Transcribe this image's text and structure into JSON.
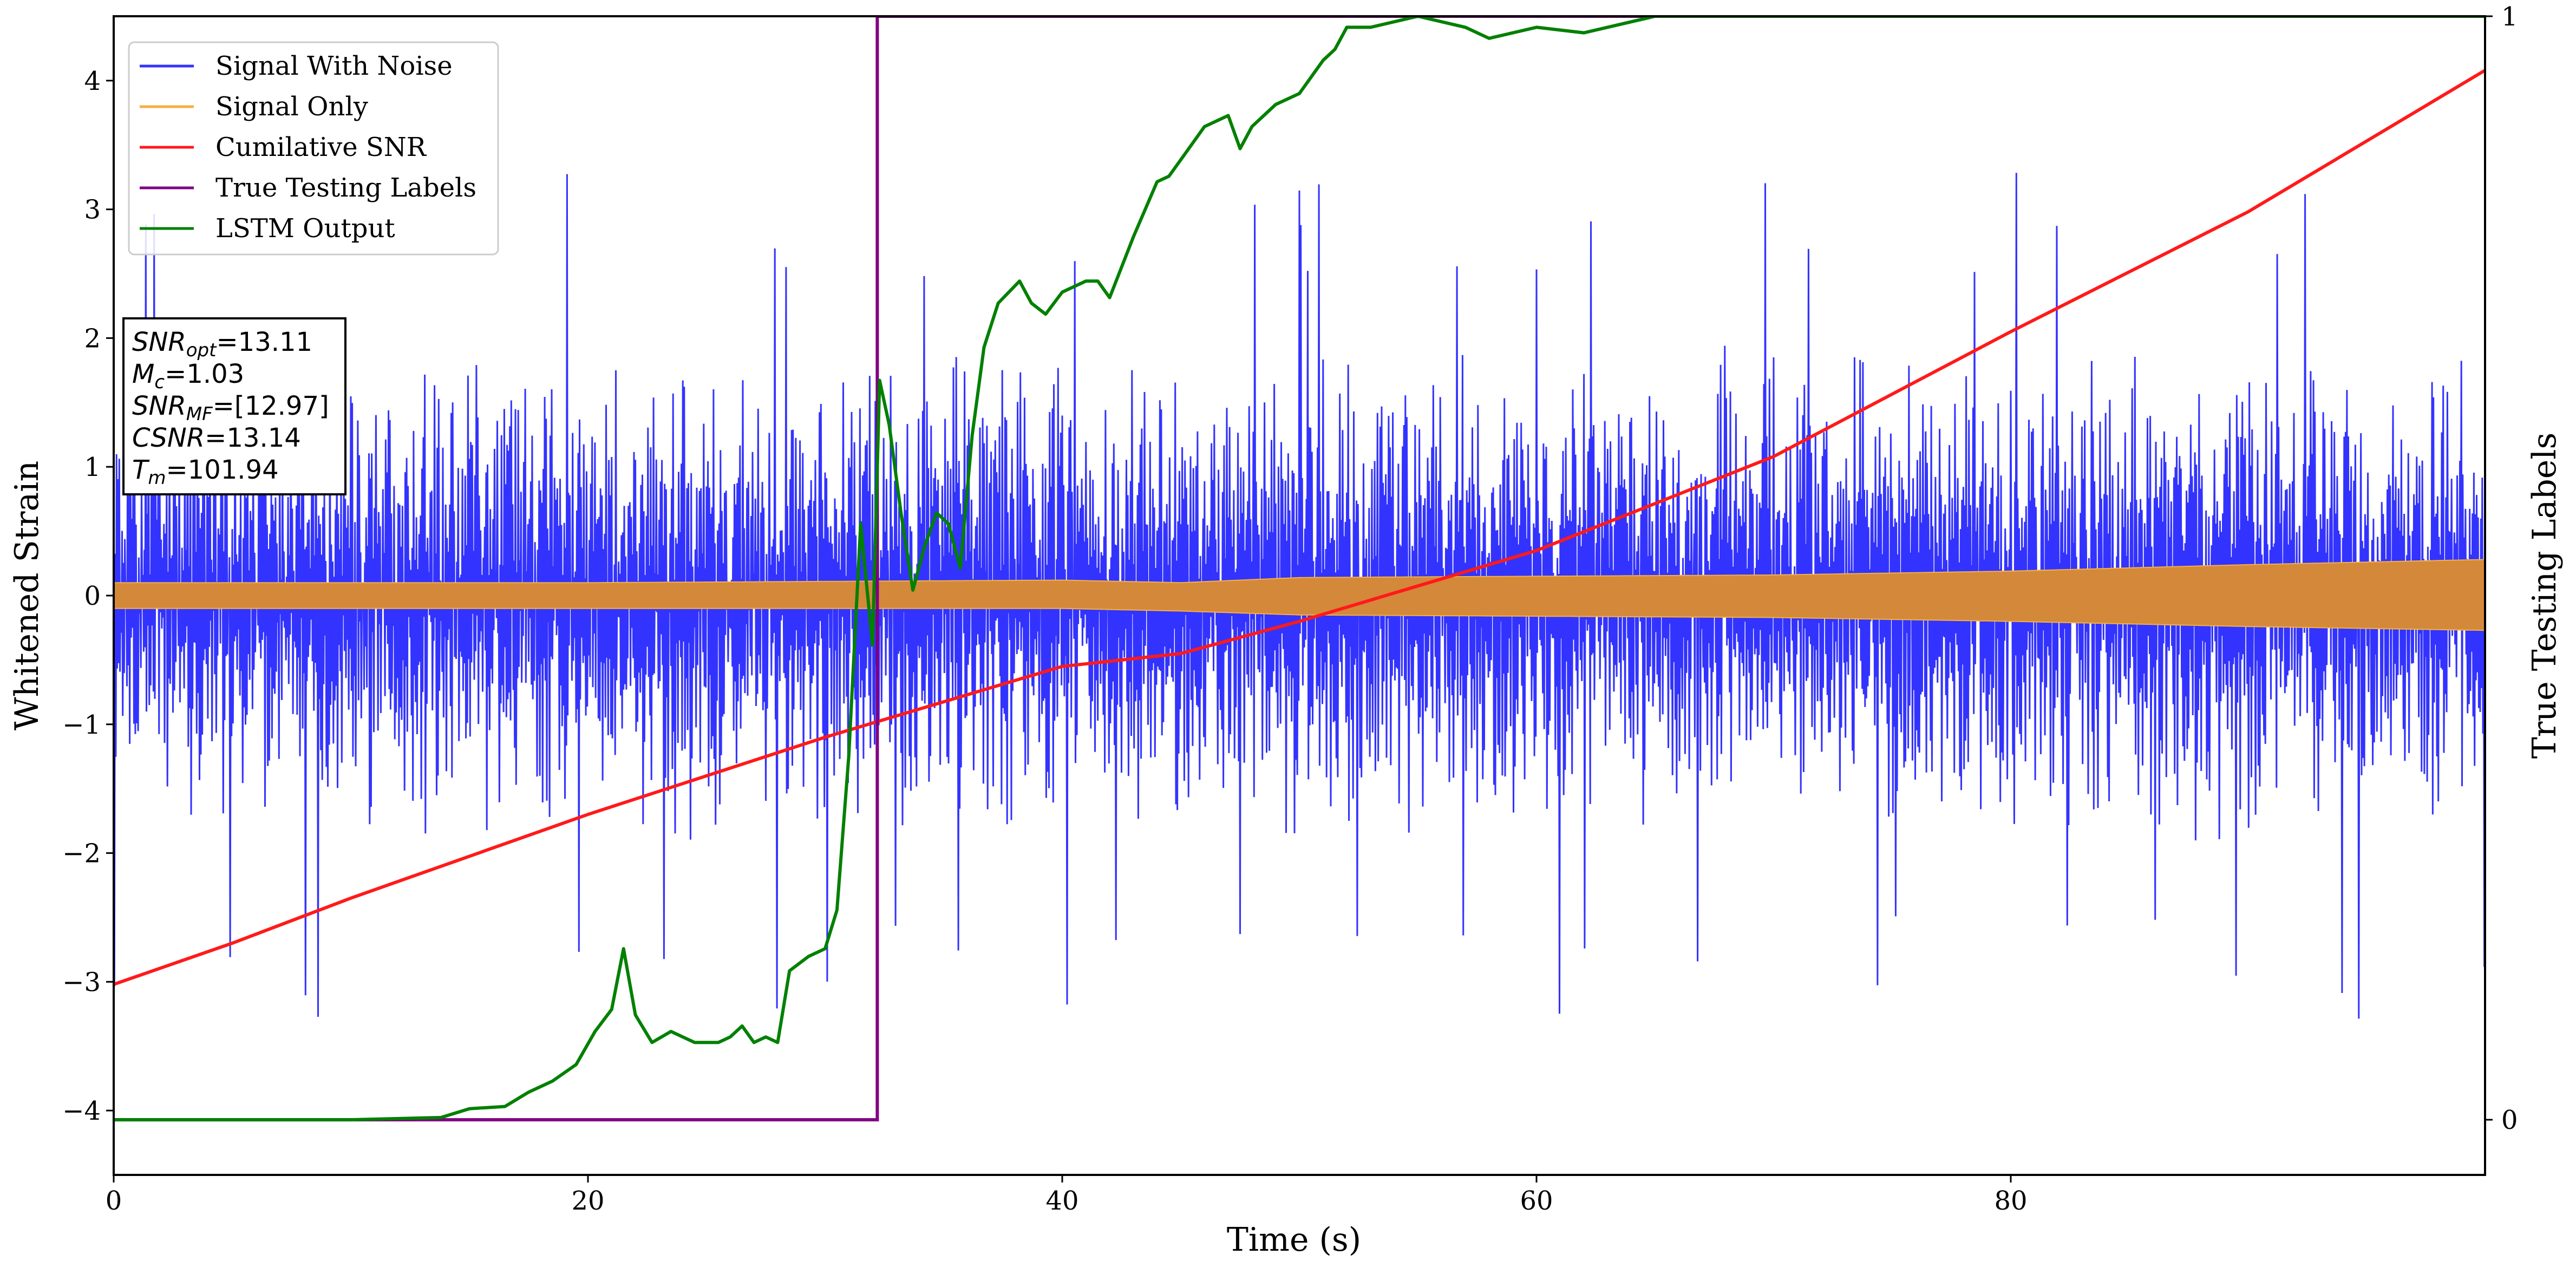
{
  "chart_data": {
    "type": "line",
    "xlabel": "Time (s)",
    "ylabel": "Whitened Strain",
    "y2label": "True Testing Labels",
    "xlim": [
      0,
      100
    ],
    "ylim": [
      -4.5,
      4.5
    ],
    "y2lim": [
      -0.05,
      1.0
    ],
    "xticks": [
      0,
      20,
      40,
      60,
      80
    ],
    "xtick_labels": [
      "0",
      "20",
      "40",
      "60",
      "80"
    ],
    "yticks": [
      -4,
      -3,
      -2,
      -1,
      0,
      1,
      2,
      3,
      4
    ],
    "ytick_labels": [
      "−4",
      "−3",
      "−2",
      "−1",
      "0",
      "1",
      "2",
      "3",
      "4"
    ],
    "y2ticks": [
      0,
      1
    ],
    "y2tick_labels": [
      "0",
      "1"
    ],
    "legend_position": "top-left",
    "colors": {
      "signal_with_noise": "#3333ff",
      "signal_only": "#d4883a",
      "cumulative_snr": "#ff1a1a",
      "true_labels": "#800080",
      "lstm_output": "#008000"
    },
    "series": [
      {
        "name": "Signal With Noise",
        "color": "#3333ff",
        "kind": "noise",
        "amplitude_typical": 1.3,
        "amplitude_max": 3.3
      },
      {
        "name": "Signal Only",
        "color": "#f5b041",
        "kind": "band",
        "x": [
          0,
          20,
          40,
          45,
          50,
          60,
          70,
          80,
          90,
          100
        ],
        "upper": [
          0.1,
          0.1,
          0.12,
          0.1,
          0.14,
          0.15,
          0.16,
          0.19,
          0.24,
          0.28
        ],
        "lower": [
          -0.1,
          -0.1,
          -0.1,
          -0.12,
          -0.15,
          -0.16,
          -0.17,
          -0.2,
          -0.24,
          -0.27
        ]
      },
      {
        "name": "Cumilative SNR",
        "color": "#ff1a1a",
        "kind": "line",
        "axis": "left",
        "x": [
          0,
          5,
          10,
          20,
          30,
          40,
          45,
          50,
          60,
          70,
          80,
          90,
          100
        ],
        "y": [
          -3.02,
          -2.7,
          -2.35,
          -1.7,
          -1.1,
          -0.55,
          -0.45,
          -0.2,
          0.35,
          1.08,
          2.05,
          2.98,
          4.08
        ]
      },
      {
        "name": "True Testing Labels",
        "color": "#800080",
        "kind": "step",
        "axis": "right",
        "x": [
          0,
          32.2,
          32.2,
          100
        ],
        "y": [
          0,
          0,
          1,
          1
        ]
      },
      {
        "name": "LSTM Output",
        "color": "#008000",
        "kind": "line",
        "axis": "right",
        "x": [
          0,
          10,
          13.8,
          15,
          16.5,
          17.5,
          18.5,
          19.5,
          20.3,
          21,
          21.5,
          22,
          22.7,
          23.5,
          24.5,
          25.5,
          26,
          26.5,
          27,
          27.5,
          28,
          28.5,
          29.3,
          30,
          30.5,
          31,
          31.5,
          32,
          32.3,
          32.7,
          33.2,
          33.7,
          34.2,
          34.7,
          35.2,
          35.7,
          36.2,
          36.7,
          37.3,
          38.2,
          38.7,
          39.3,
          40,
          41,
          41.5,
          42,
          43,
          44,
          44.5,
          45,
          46,
          47,
          47.5,
          48,
          49,
          50,
          51,
          51.5,
          52,
          53,
          55,
          57,
          58,
          60,
          62,
          64,
          65,
          66,
          67,
          68,
          100
        ],
        "y": [
          0,
          0,
          0.002,
          0.01,
          0.012,
          0.025,
          0.035,
          0.05,
          0.08,
          0.1,
          0.155,
          0.095,
          0.07,
          0.08,
          0.07,
          0.07,
          0.075,
          0.085,
          0.07,
          0.075,
          0.07,
          0.135,
          0.148,
          0.155,
          0.19,
          0.33,
          0.54,
          0.43,
          0.67,
          0.63,
          0.55,
          0.48,
          0.52,
          0.55,
          0.54,
          0.5,
          0.62,
          0.7,
          0.74,
          0.76,
          0.74,
          0.73,
          0.75,
          0.76,
          0.76,
          0.745,
          0.8,
          0.85,
          0.855,
          0.87,
          0.9,
          0.91,
          0.88,
          0.9,
          0.92,
          0.93,
          0.96,
          0.97,
          0.99,
          0.99,
          1.0,
          0.99,
          0.98,
          0.99,
          0.985,
          0.995,
          1.0,
          1.0,
          1.0,
          1.0,
          1.0
        ]
      }
    ],
    "annotation": {
      "lines": [
        {
          "sym": "SNR",
          "sub": "opt",
          "value": "=13.11"
        },
        {
          "sym": "M",
          "sub": "c",
          "value": "=1.03"
        },
        {
          "sym": "SNR",
          "sub": "MF",
          "value": "=[12.97]"
        },
        {
          "sym": "CSNR",
          "sub": "",
          "value": "=13.14"
        },
        {
          "sym": "T",
          "sub": "m",
          "value": "=101.94"
        }
      ]
    }
  }
}
